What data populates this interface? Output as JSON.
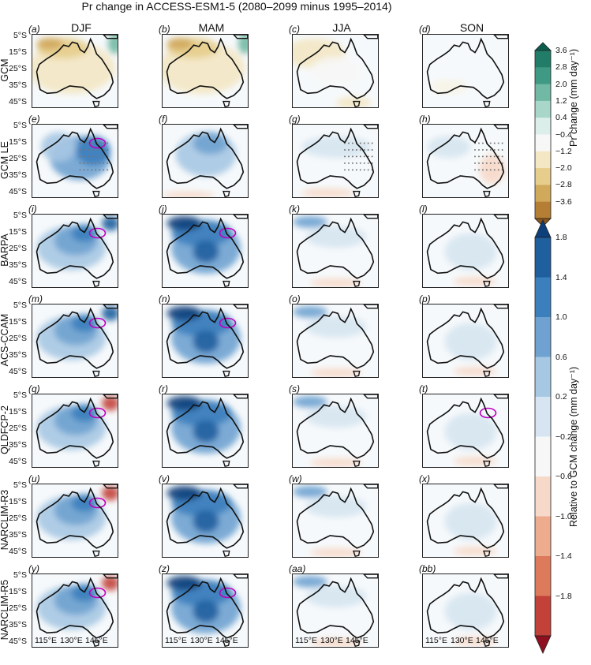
{
  "title": "Pr change in ACCESS-ESM1-5 (2080–2099 minus 1995–2014)",
  "seasons": [
    "DJF",
    "MAM",
    "JJA",
    "SON"
  ],
  "rows": [
    "GCM",
    "GCM LE",
    "BARPA",
    "ACS-CCAM",
    "QLDFCP-2",
    "NARCLIM-R3",
    "NARCLIM-R5"
  ],
  "panel_labels": [
    "(a)",
    "(b)",
    "(c)",
    "(d)",
    "(e)",
    "(f)",
    "(g)",
    "(h)",
    "(i)",
    "(j)",
    "(k)",
    "(l)",
    "(m)",
    "(n)",
    "(o)",
    "(p)",
    "(q)",
    "(r)",
    "(s)",
    "(t)",
    "(u)",
    "(v)",
    "(w)",
    "(x)",
    "(y)",
    "(z)",
    "(aa)",
    "(bb)"
  ],
  "lat_ticks": [
    "5°S",
    "15°S",
    "25°S",
    "35°S",
    "45°S"
  ],
  "lon_ticks": [
    "115°E",
    "130°E",
    "145°E"
  ],
  "colorbar_top": {
    "label": "Pr change (mm day⁻¹)",
    "ticks": [
      "3.6",
      "2.8",
      "2.0",
      "1.2",
      "0.4",
      "−0.4",
      "−1.2",
      "−2.0",
      "−2.8",
      "−3.6"
    ],
    "colors": [
      "#0b5e4e",
      "#217c68",
      "#3f9a83",
      "#71b9a4",
      "#a8d6c8",
      "#dceee9",
      "#f7f7f7",
      "#f3e7c4",
      "#e6cd8c",
      "#d0a95b",
      "#b47f34",
      "#8a561a"
    ]
  },
  "colorbar_bottom": {
    "label": "Relative to GCM change (mm day⁻¹)",
    "ticks": [
      "1.8",
      "1.4",
      "1.0",
      "0.6",
      "0.2",
      "−0.2",
      "−0.6",
      "−1.0",
      "−1.4",
      "−1.8"
    ],
    "colors": [
      "#0d3f7a",
      "#1f5f9e",
      "#3b7fbd",
      "#6fa2d0",
      "#a7c8e3",
      "#d6e5f1",
      "#f7f7f7",
      "#f7d9c9",
      "#eeac8f",
      "#dc7a5b",
      "#c2423a",
      "#8f0f20"
    ]
  }
}
